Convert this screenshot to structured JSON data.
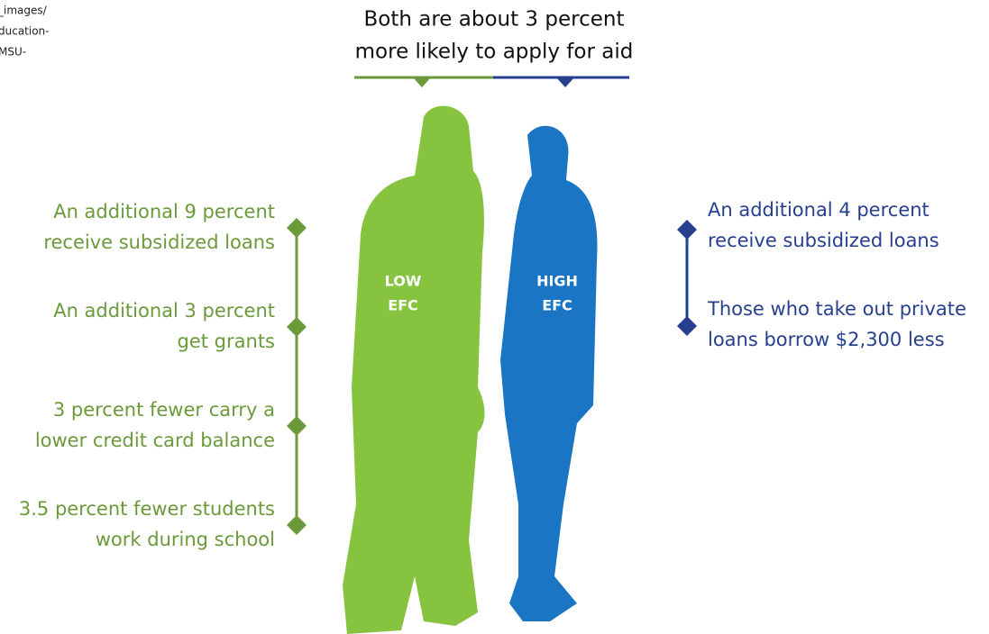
{
  "corner_text": [
    "_images/",
    "ducation-",
    "MSU-"
  ],
  "header": {
    "lines": [
      "Both are about 3 percent",
      "more likely to apply for aid"
    ]
  },
  "figures": [
    {
      "label": [
        "LOW",
        "EFC"
      ]
    },
    {
      "label": [
        "HIGH",
        "EFC"
      ]
    }
  ],
  "left_points": [
    {
      "lines": [
        "An additional 9 percent",
        "receive subsidized loans"
      ]
    },
    {
      "lines": [
        "An additional 3 percent",
        "get grants"
      ]
    },
    {
      "lines": [
        "3 percent fewer carry a",
        "lower credit card balance"
      ]
    },
    {
      "lines": [
        "3.5 percent fewer students",
        "work during school"
      ]
    }
  ],
  "right_points": [
    {
      "lines": [
        "An additional 4 percent",
        "receive subsidized loans"
      ]
    },
    {
      "lines": [
        "Those who take out private",
        "loans borrow $2,300 less"
      ]
    }
  ]
}
